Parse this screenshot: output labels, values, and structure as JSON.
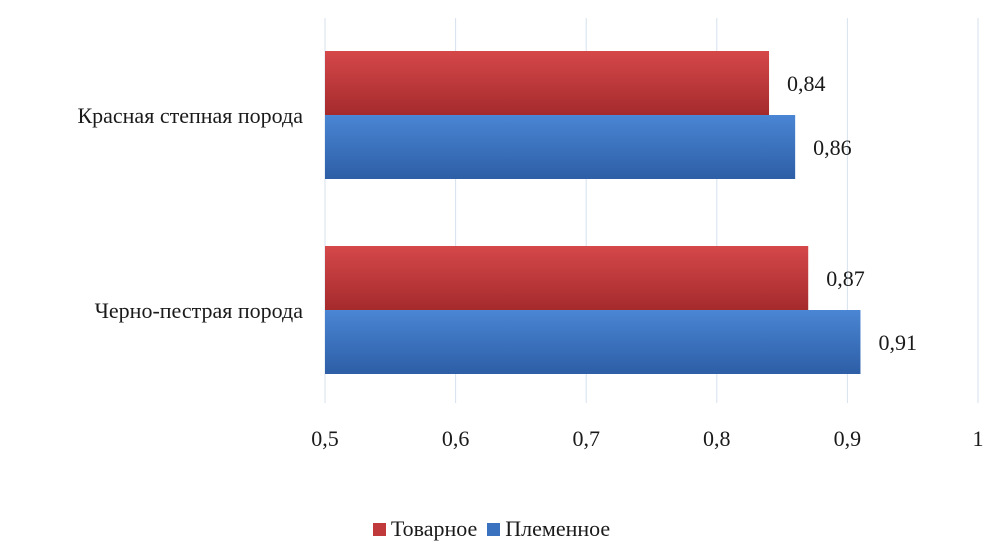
{
  "chart_data": {
    "type": "bar",
    "orientation": "horizontal",
    "categories": [
      "Красная степная порода",
      "Черно-пестрая порода"
    ],
    "series": [
      {
        "name": "Товарное",
        "color": "#c0393b",
        "values": [
          0.84,
          0.87
        ],
        "labels": [
          "0,84",
          "0,87"
        ]
      },
      {
        "name": "Племенное",
        "color": "#3a72c0",
        "values": [
          0.86,
          0.91
        ],
        "labels": [
          "0,86",
          "0,91"
        ]
      }
    ],
    "xlim": [
      0.5,
      1
    ],
    "xticks": [
      {
        "value": 0.5,
        "label": "0,5"
      },
      {
        "value": 0.6,
        "label": "0,6"
      },
      {
        "value": 0.7,
        "label": "0,7"
      },
      {
        "value": 0.8,
        "label": "0,8"
      },
      {
        "value": 0.9,
        "label": "0,9"
      },
      {
        "value": 1.0,
        "label": "1"
      }
    ],
    "grid": true,
    "legend_position": "bottom",
    "title": "",
    "xlabel": "",
    "ylabel": ""
  }
}
